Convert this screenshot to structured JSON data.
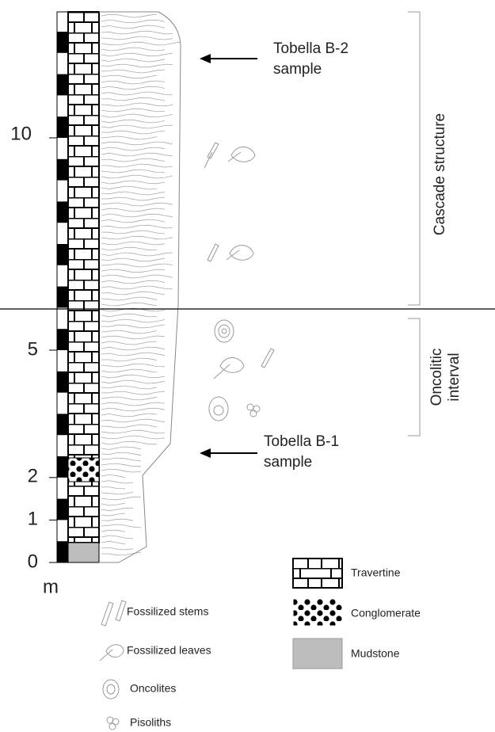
{
  "scale": {
    "labels": [
      "0",
      "1",
      "2",
      "5",
      "10"
    ],
    "unit": "m"
  },
  "samples": [
    {
      "lines": [
        "Tobella B-2",
        "sample"
      ]
    },
    {
      "lines": [
        "Tobella B-1",
        "sample"
      ]
    }
  ],
  "intervals": [
    {
      "lines": [
        "Cascade structure"
      ]
    },
    {
      "lines": [
        "Oncolitic",
        "interval"
      ]
    }
  ],
  "legend_symbols": [
    "Fossilized stems",
    "Fossilized leaves",
    "Oncolites",
    "Pisoliths"
  ],
  "legend_lithology": [
    "Travertine",
    "Conglomerate",
    "Mudstone"
  ]
}
